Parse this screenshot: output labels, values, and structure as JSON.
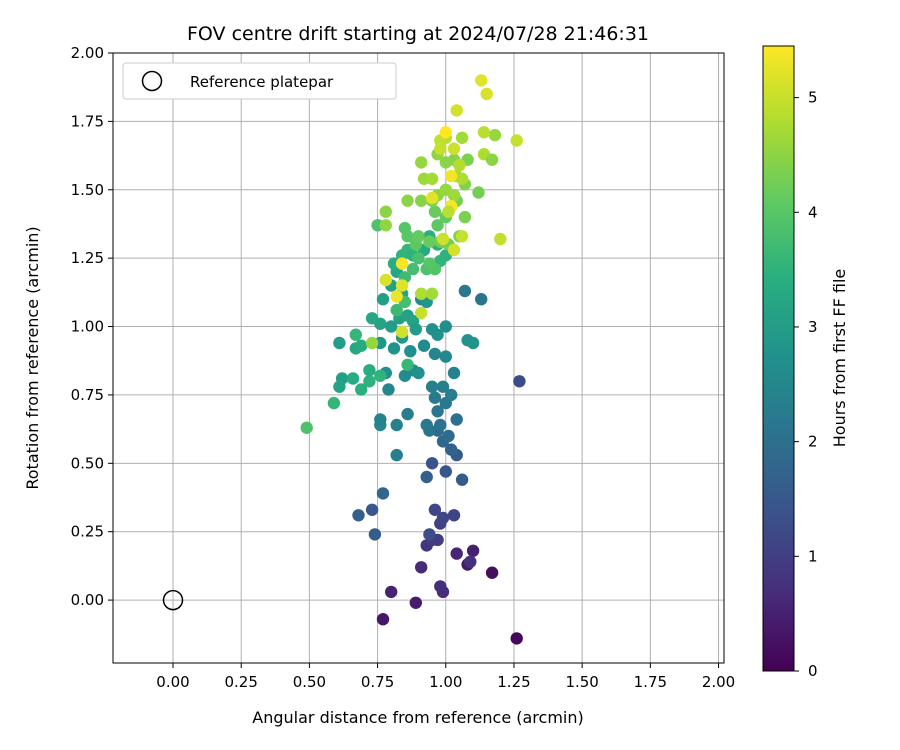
{
  "chart_data": {
    "type": "scatter",
    "title": "FOV centre drift starting at 2024/07/28 21:46:31",
    "xlabel": "Angular distance from reference (arcmin)",
    "ylabel": "Rotation from reference (arcmin)",
    "xlim": [
      -0.22,
      2.02
    ],
    "ylim": [
      -0.23,
      2.0
    ],
    "xticks": [
      "0.00",
      "0.25",
      "0.50",
      "0.75",
      "1.00",
      "1.25",
      "1.50",
      "1.75",
      "2.00"
    ],
    "yticks": [
      "0.00",
      "0.25",
      "0.50",
      "0.75",
      "1.00",
      "1.25",
      "1.50",
      "1.75",
      "2.00"
    ],
    "grid": true,
    "legend_position": "top-left",
    "legend": [
      {
        "label": "Reference platepar",
        "marker": "open-circle"
      }
    ],
    "reference_point": {
      "x": 0.0,
      "y": 0.0
    },
    "colorbar": {
      "label": "Hours from first FF file",
      "range": [
        0,
        5.45
      ],
      "ticks": [
        "0",
        "1",
        "2",
        "3",
        "4",
        "5"
      ],
      "colormap": "viridis"
    },
    "points": [
      [
        1.26,
        -0.14,
        0.1
      ],
      [
        0.77,
        -0.07,
        0.35
      ],
      [
        0.89,
        -0.01,
        0.45
      ],
      [
        1.17,
        0.1,
        0.2
      ],
      [
        0.8,
        0.03,
        0.55
      ],
      [
        0.99,
        0.03,
        0.7
      ],
      [
        0.98,
        0.05,
        0.75
      ],
      [
        0.91,
        0.12,
        0.65
      ],
      [
        1.08,
        0.13,
        0.4
      ],
      [
        1.1,
        0.18,
        0.5
      ],
      [
        1.04,
        0.17,
        0.6
      ],
      [
        1.09,
        0.14,
        0.8
      ],
      [
        0.93,
        0.2,
        0.85
      ],
      [
        0.95,
        0.22,
        0.95
      ],
      [
        0.97,
        0.22,
        1.0
      ],
      [
        0.98,
        0.28,
        1.05
      ],
      [
        1.03,
        0.31,
        1.1
      ],
      [
        0.99,
        0.3,
        1.15
      ],
      [
        0.96,
        0.33,
        1.2
      ],
      [
        0.94,
        0.24,
        1.3
      ],
      [
        0.73,
        0.33,
        1.5
      ],
      [
        0.74,
        0.24,
        1.6
      ],
      [
        0.68,
        0.31,
        1.7
      ],
      [
        0.77,
        0.39,
        1.8
      ],
      [
        1.27,
        0.8,
        1.25
      ],
      [
        0.95,
        0.5,
        1.4
      ],
      [
        1.0,
        0.47,
        1.5
      ],
      [
        1.06,
        0.44,
        1.6
      ],
      [
        1.04,
        0.53,
        1.55
      ],
      [
        0.93,
        0.45,
        1.7
      ],
      [
        1.02,
        0.55,
        1.75
      ],
      [
        0.99,
        0.58,
        1.85
      ],
      [
        0.97,
        0.62,
        1.9
      ],
      [
        1.01,
        0.6,
        1.95
      ],
      [
        1.04,
        0.66,
        2.0
      ],
      [
        0.98,
        0.64,
        2.05
      ],
      [
        0.94,
        0.62,
        2.1
      ],
      [
        0.97,
        0.69,
        2.15
      ],
      [
        1.0,
        0.72,
        2.2
      ],
      [
        0.96,
        0.74,
        2.25
      ],
      [
        1.02,
        0.75,
        2.3
      ],
      [
        0.99,
        0.78,
        2.35
      ],
      [
        0.95,
        0.78,
        2.4
      ],
      [
        1.03,
        0.83,
        2.45
      ],
      [
        0.96,
        0.9,
        2.5
      ],
      [
        1.0,
        0.89,
        2.55
      ],
      [
        1.13,
        1.1,
        2.1
      ],
      [
        1.07,
        1.13,
        2.2
      ],
      [
        0.93,
        0.64,
        2.2
      ],
      [
        0.86,
        0.68,
        2.3
      ],
      [
        0.82,
        0.64,
        2.4
      ],
      [
        0.76,
        0.64,
        2.5
      ],
      [
        0.82,
        0.53,
        2.35
      ],
      [
        0.76,
        0.66,
        2.45
      ],
      [
        0.79,
        0.77,
        2.5
      ],
      [
        0.85,
        0.82,
        2.6
      ],
      [
        0.78,
        0.83,
        2.7
      ],
      [
        0.88,
        0.84,
        2.65
      ],
      [
        0.9,
        0.83,
        2.75
      ],
      [
        0.92,
        0.93,
        2.6
      ],
      [
        0.87,
        0.91,
        2.7
      ],
      [
        0.81,
        0.92,
        2.8
      ],
      [
        0.76,
        0.94,
        2.85
      ],
      [
        0.84,
        0.96,
        2.9
      ],
      [
        0.97,
        0.97,
        2.8
      ],
      [
        0.95,
        0.99,
        2.75
      ],
      [
        1.0,
        1.0,
        2.7
      ],
      [
        0.91,
        1.1,
        2.6
      ],
      [
        1.08,
        0.95,
        2.8
      ],
      [
        1.1,
        0.94,
        2.85
      ],
      [
        0.93,
        1.09,
        2.9
      ],
      [
        0.8,
        1.0,
        3.0
      ],
      [
        0.83,
        1.03,
        3.1
      ],
      [
        0.86,
        1.04,
        3.15
      ],
      [
        0.88,
        1.02,
        3.2
      ],
      [
        0.89,
        0.99,
        3.0
      ],
      [
        0.77,
        1.1,
        3.05
      ],
      [
        0.8,
        1.15,
        3.1
      ],
      [
        0.84,
        1.12,
        3.2
      ],
      [
        0.82,
        1.2,
        3.25
      ],
      [
        0.87,
        1.27,
        3.3
      ],
      [
        0.92,
        1.28,
        3.35
      ],
      [
        0.97,
        1.3,
        3.4
      ],
      [
        1.0,
        1.26,
        3.5
      ],
      [
        0.94,
        1.33,
        3.45
      ],
      [
        0.98,
        1.24,
        3.55
      ],
      [
        0.76,
        1.01,
        3.2
      ],
      [
        0.73,
        1.03,
        3.25
      ],
      [
        0.67,
        0.92,
        3.3
      ],
      [
        0.69,
        0.93,
        3.35
      ],
      [
        0.61,
        0.94,
        3.0
      ],
      [
        0.62,
        0.81,
        3.1
      ],
      [
        0.61,
        0.78,
        3.2
      ],
      [
        0.66,
        0.81,
        3.4
      ],
      [
        0.72,
        0.8,
        3.5
      ],
      [
        0.72,
        0.84,
        3.4
      ],
      [
        0.76,
        0.82,
        3.55
      ],
      [
        0.69,
        0.77,
        3.45
      ],
      [
        0.59,
        0.72,
        3.6
      ],
      [
        0.67,
        0.97,
        3.6
      ],
      [
        0.81,
        1.23,
        3.4
      ],
      [
        0.84,
        1.26,
        3.55
      ],
      [
        0.86,
        1.28,
        3.6
      ],
      [
        0.88,
        1.26,
        3.5
      ],
      [
        0.86,
        0.86,
        3.65
      ],
      [
        0.82,
        1.06,
        3.7
      ],
      [
        0.85,
        1.09,
        3.8
      ],
      [
        0.85,
        1.18,
        3.75
      ],
      [
        0.88,
        1.21,
        3.8
      ],
      [
        0.9,
        1.25,
        3.85
      ],
      [
        0.93,
        1.21,
        3.9
      ],
      [
        0.96,
        1.21,
        3.95
      ],
      [
        0.94,
        1.23,
        4.0
      ],
      [
        0.49,
        0.63,
        3.9
      ],
      [
        0.75,
        1.37,
        3.9
      ],
      [
        0.85,
        1.36,
        4.0
      ],
      [
        0.86,
        1.33,
        4.05
      ],
      [
        0.89,
        1.3,
        4.1
      ],
      [
        0.9,
        1.33,
        4.15
      ],
      [
        0.94,
        1.31,
        4.2
      ],
      [
        0.98,
        1.31,
        4.25
      ],
      [
        1.01,
        1.3,
        4.3
      ],
      [
        1.05,
        1.33,
        4.35
      ],
      [
        0.97,
        1.37,
        4.1
      ],
      [
        1.0,
        1.4,
        4.15
      ],
      [
        0.96,
        1.42,
        4.2
      ],
      [
        1.02,
        1.44,
        4.25
      ],
      [
        1.04,
        1.46,
        4.3
      ],
      [
        1.07,
        1.4,
        4.35
      ],
      [
        0.95,
        1.46,
        4.4
      ],
      [
        0.91,
        1.46,
        4.45
      ],
      [
        0.86,
        1.46,
        4.5
      ],
      [
        0.78,
        1.42,
        4.5
      ],
      [
        0.78,
        1.37,
        4.55
      ],
      [
        0.97,
        1.48,
        4.55
      ],
      [
        1.0,
        1.5,
        4.6
      ],
      [
        1.03,
        1.48,
        4.65
      ],
      [
        1.07,
        1.52,
        4.4
      ],
      [
        1.12,
        1.49,
        4.3
      ],
      [
        1.08,
        1.61,
        4.35
      ],
      [
        1.03,
        1.61,
        4.45
      ],
      [
        1.0,
        1.6,
        4.5
      ],
      [
        0.97,
        1.63,
        4.55
      ],
      [
        0.91,
        1.6,
        4.6
      ],
      [
        0.92,
        1.54,
        4.65
      ],
      [
        0.95,
        1.54,
        4.7
      ],
      [
        1.04,
        1.55,
        4.75
      ],
      [
        1.06,
        1.54,
        4.8
      ],
      [
        1.05,
        1.59,
        4.85
      ],
      [
        1.14,
        1.63,
        4.8
      ],
      [
        1.17,
        1.61,
        4.5
      ],
      [
        1.18,
        1.7,
        4.6
      ],
      [
        1.06,
        1.69,
        4.7
      ],
      [
        1.0,
        1.69,
        4.9
      ],
      [
        0.98,
        1.68,
        4.95
      ],
      [
        0.98,
        1.65,
        5.0
      ],
      [
        1.03,
        1.65,
        5.05
      ],
      [
        1.04,
        1.79,
        5.1
      ],
      [
        1.14,
        1.71,
        4.9
      ],
      [
        1.26,
        1.68,
        5.0
      ],
      [
        1.13,
        1.9,
        5.2
      ],
      [
        1.15,
        1.85,
        5.15
      ],
      [
        1.2,
        1.32,
        4.95
      ],
      [
        1.06,
        1.33,
        5.0
      ],
      [
        0.99,
        1.32,
        5.05
      ],
      [
        1.03,
        1.28,
        5.1
      ],
      [
        0.91,
        1.05,
        5.0
      ],
      [
        0.84,
        0.98,
        5.1
      ],
      [
        0.78,
        1.17,
        5.15
      ],
      [
        0.82,
        1.11,
        5.3
      ],
      [
        0.84,
        1.15,
        5.2
      ],
      [
        0.84,
        1.23,
        5.4
      ],
      [
        0.95,
        1.47,
        5.2
      ],
      [
        1.02,
        1.55,
        5.35
      ],
      [
        1.02,
        1.44,
        5.4
      ],
      [
        1.0,
        1.71,
        5.45
      ],
      [
        1.01,
        1.42,
        4.9
      ],
      [
        0.91,
        1.12,
        4.8
      ],
      [
        0.95,
        1.12,
        4.7
      ],
      [
        0.73,
        0.94,
        4.6
      ]
    ]
  }
}
